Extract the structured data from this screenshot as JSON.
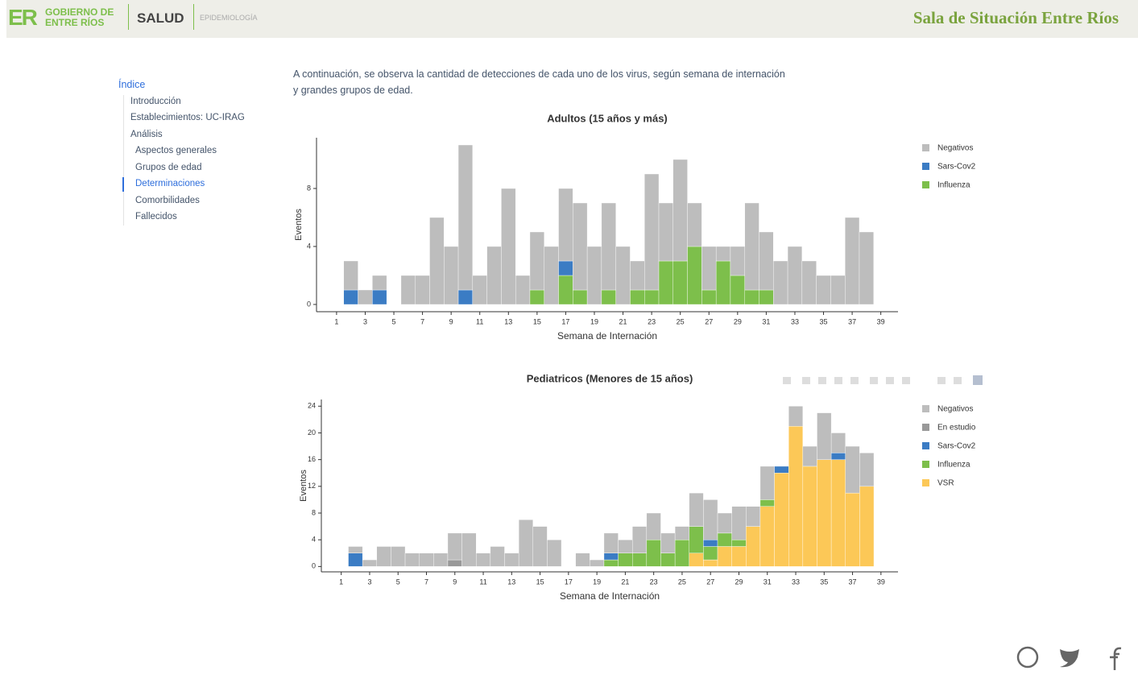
{
  "header": {
    "logo_mark": "ER",
    "logo_text": [
      "GOBIERNO DE",
      "ENTRE RÍOS"
    ],
    "ministry": "SALUD",
    "office": "EPIDEMIOLOGÍA",
    "title": "Sala de Situación Entre Ríos"
  },
  "nav": {
    "heading": "Índice",
    "items": [
      "Introducción",
      "Establecimientos: UC-IRAG",
      "Análisis",
      "Aspectos generales",
      "Grupos de edad",
      "Determinaciones",
      "Comorbilidades",
      "Fallecidos"
    ]
  },
  "intro": "A continuación, se observa la cantidad de detecciones de cada uno de los virus, según semana de internación y grandes grupos de edad.",
  "chart_data": [
    {
      "type": "stacked-bar",
      "title": "Adultos (15 años y más)",
      "x_label": "Semana de Internación",
      "y_label": "Eventos",
      "x": [
        2,
        3,
        4,
        5,
        6,
        7,
        8,
        9,
        10,
        11,
        12,
        13,
        14,
        15,
        16,
        17,
        18,
        19,
        20,
        21,
        22,
        23,
        24,
        25,
        26,
        27,
        28,
        29,
        30,
        31,
        32,
        33,
        34,
        35,
        36,
        37,
        38
      ],
      "series": [
        {
          "name": "Negativos",
          "color": "#bdbdbd",
          "values": [
            2,
            1,
            1,
            0,
            2,
            2,
            6,
            4,
            10,
            2,
            4,
            8,
            2,
            4,
            4,
            5,
            6,
            4,
            6,
            4,
            2,
            8,
            4,
            7,
            3,
            3,
            1,
            2,
            6,
            4,
            3,
            4,
            3,
            2,
            2,
            6,
            5
          ]
        },
        {
          "name": "Sars-Cov2",
          "color": "#3b7cc4",
          "values": [
            1,
            0,
            1,
            0,
            0,
            0,
            0,
            0,
            1,
            0,
            0,
            0,
            0,
            0,
            0,
            1,
            0,
            0,
            0,
            0,
            0,
            0,
            0,
            0,
            0,
            0,
            0,
            0,
            0,
            0,
            0,
            0,
            0,
            0,
            0,
            0,
            0
          ]
        },
        {
          "name": "Influenza",
          "color": "#7dbf4b",
          "values": [
            0,
            0,
            0,
            0,
            0,
            0,
            0,
            0,
            0,
            0,
            0,
            0,
            0,
            1,
            0,
            2,
            1,
            0,
            1,
            0,
            1,
            1,
            3,
            3,
            4,
            1,
            3,
            2,
            1,
            1,
            0,
            0,
            0,
            0,
            0,
            0,
            0
          ]
        }
      ],
      "xlim": [
        -0.4,
        40.2
      ],
      "xticks": [
        1,
        3,
        5,
        7,
        9,
        11,
        13,
        15,
        17,
        19,
        21,
        23,
        25,
        27,
        29,
        31,
        33,
        35,
        37,
        39
      ],
      "ylim": [
        -0.5,
        11.5
      ],
      "yticks": [
        0,
        4,
        8
      ]
    },
    {
      "type": "stacked-bar",
      "title": "Pediatricos (Menores de 15 años)",
      "x_label": "Semana de Internación",
      "y_label": "Eventos",
      "x": [
        2,
        3,
        4,
        5,
        6,
        7,
        8,
        9,
        10,
        11,
        12,
        13,
        14,
        15,
        16,
        17,
        18,
        19,
        20,
        21,
        22,
        23,
        24,
        25,
        26,
        27,
        28,
        29,
        30,
        31,
        32,
        33,
        34,
        35,
        36,
        37,
        38
      ],
      "series": [
        {
          "name": "Negativos",
          "color": "#bdbdbd",
          "values": [
            1,
            1,
            3,
            3,
            2,
            2,
            2,
            4,
            5,
            2,
            3,
            2,
            7,
            6,
            4,
            0,
            2,
            1,
            3,
            2,
            4,
            4,
            3,
            2,
            5,
            6,
            3,
            5,
            3,
            5,
            0,
            3,
            3,
            7,
            3,
            7,
            5
          ]
        },
        {
          "name": "En estudio",
          "color": "#999999",
          "values": [
            0,
            0,
            0,
            0,
            0,
            0,
            0,
            1,
            0,
            0,
            0,
            0,
            0,
            0,
            0,
            0,
            0,
            0,
            0,
            0,
            0,
            0,
            0,
            0,
            0,
            0,
            0,
            0,
            0,
            0,
            0,
            0,
            0,
            0,
            0,
            0,
            0
          ]
        },
        {
          "name": "Sars-Cov2",
          "color": "#3b7cc4",
          "values": [
            2,
            0,
            0,
            0,
            0,
            0,
            0,
            0,
            0,
            0,
            0,
            0,
            0,
            0,
            0,
            0,
            0,
            0,
            1,
            0,
            0,
            0,
            0,
            0,
            0,
            1,
            0,
            0,
            0,
            0,
            1,
            0,
            0,
            0,
            1,
            0,
            0
          ]
        },
        {
          "name": "Influenza",
          "color": "#7dbf4b",
          "values": [
            0,
            0,
            0,
            0,
            0,
            0,
            0,
            0,
            0,
            0,
            0,
            0,
            0,
            0,
            0,
            0,
            0,
            0,
            1,
            2,
            2,
            4,
            2,
            4,
            4,
            2,
            2,
            1,
            0,
            1,
            0,
            0,
            0,
            0,
            0,
            0,
            0
          ]
        },
        {
          "name": "VSR",
          "color": "#fcc857",
          "values": [
            0,
            0,
            0,
            0,
            0,
            0,
            0,
            0,
            0,
            0,
            0,
            0,
            0,
            0,
            0,
            0,
            0,
            0,
            0,
            0,
            0,
            0,
            0,
            0,
            2,
            1,
            3,
            3,
            6,
            9,
            14,
            21,
            15,
            16,
            16,
            11,
            12
          ]
        }
      ],
      "xlim": [
        -0.4,
        40.2
      ],
      "xticks": [
        1,
        3,
        5,
        7,
        9,
        11,
        13,
        15,
        17,
        19,
        21,
        23,
        25,
        27,
        29,
        31,
        33,
        35,
        37,
        39
      ],
      "ylim": [
        -0.8,
        25
      ],
      "yticks": [
        0,
        4,
        8,
        12,
        16,
        20,
        24
      ]
    }
  ]
}
